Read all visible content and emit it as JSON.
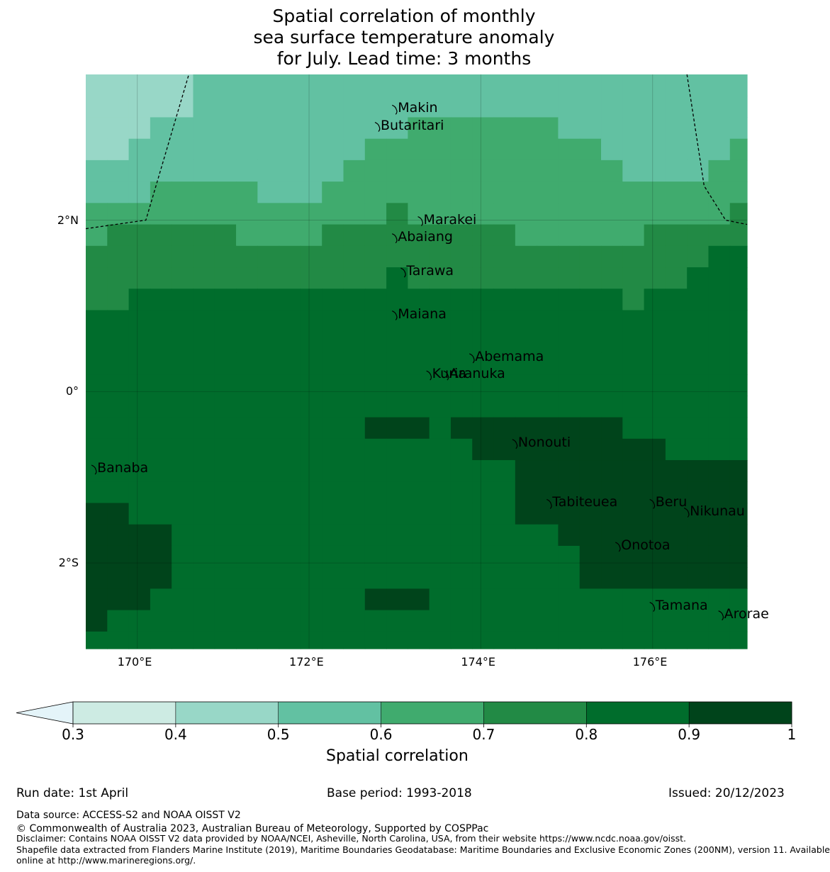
{
  "title": {
    "line1": "Spatial correlation of monthly",
    "line2": "sea surface temperature anomaly",
    "line3": "for July. Lead time: 3 months"
  },
  "map": {
    "lon_range": [
      169.4,
      177.1
    ],
    "lat_range": [
      -3.0,
      3.7
    ],
    "lon_ticks": [
      {
        "value": 170,
        "label": "170°E"
      },
      {
        "value": 172,
        "label": "172°E"
      },
      {
        "value": 174,
        "label": "174°E"
      },
      {
        "value": 176,
        "label": "176°E"
      }
    ],
    "lat_ticks": [
      {
        "value": 2,
        "label": "2°N"
      },
      {
        "value": 0,
        "label": "0°"
      },
      {
        "value": -2,
        "label": "2°S"
      }
    ],
    "grid": true,
    "islands": [
      {
        "name": "Makin",
        "lon": 173.0,
        "lat": 3.3
      },
      {
        "name": "Butaritari",
        "lon": 172.8,
        "lat": 3.1
      },
      {
        "name": "Marakei",
        "lon": 173.3,
        "lat": 2.0
      },
      {
        "name": "Abaiang",
        "lon": 173.0,
        "lat": 1.8
      },
      {
        "name": "Tarawa",
        "lon": 173.1,
        "lat": 1.4
      },
      {
        "name": "Maiana",
        "lon": 173.0,
        "lat": 0.9
      },
      {
        "name": "Abemama",
        "lon": 173.9,
        "lat": 0.4
      },
      {
        "name": "Kuria",
        "lon": 173.4,
        "lat": 0.2
      },
      {
        "name": "Aranuka",
        "lon": 173.6,
        "lat": 0.2
      },
      {
        "name": "Nonouti",
        "lon": 174.4,
        "lat": -0.6
      },
      {
        "name": "Banaba",
        "lon": 169.5,
        "lat": -0.9
      },
      {
        "name": "Tabiteuea",
        "lon": 174.8,
        "lat": -1.3
      },
      {
        "name": "Beru",
        "lon": 176.0,
        "lat": -1.3
      },
      {
        "name": "Nikunau",
        "lon": 176.4,
        "lat": -1.4
      },
      {
        "name": "Onotoa",
        "lon": 175.6,
        "lat": -1.8
      },
      {
        "name": "Tamana",
        "lon": 176.0,
        "lat": -2.5
      },
      {
        "name": "Arorae",
        "lon": 176.8,
        "lat": -2.6
      }
    ],
    "eez_boundary_west": [
      [
        169.4,
        1.9
      ],
      [
        170.1,
        2.0
      ],
      [
        170.6,
        3.7
      ]
    ],
    "eez_boundary_east": [
      [
        176.4,
        3.7
      ],
      [
        176.6,
        2.4
      ],
      [
        176.85,
        2.0
      ],
      [
        177.1,
        1.95
      ]
    ]
  },
  "legend": {
    "label": "Spatial correlation",
    "ticks": [
      "0.3",
      "0.4",
      "0.5",
      "0.6",
      "0.7",
      "0.8",
      "0.9",
      "1"
    ],
    "colors": [
      "#cdebe3",
      "#98d7c7",
      "#62c1a2",
      "#40ab6e",
      "#228a45",
      "#006d2c",
      "#00441b"
    ],
    "extend_color": "#e4f4f9"
  },
  "chart_data": {
    "type": "heatmap",
    "title": "Spatial correlation of monthly sea surface temperature anomaly for July. Lead time: 3 months",
    "xlabel": "",
    "ylabel": "",
    "x_ticks": [
      "170°E",
      "172°E",
      "174°E",
      "176°E"
    ],
    "y_ticks": [
      "2°N",
      "0°",
      "2°S"
    ],
    "lon_edges": [
      169.4,
      169.65,
      169.9,
      170.15,
      170.4,
      170.65,
      170.9,
      171.15,
      171.4,
      171.65,
      171.9,
      172.15,
      172.4,
      172.65,
      172.9,
      173.15,
      173.4,
      173.65,
      173.9,
      174.15,
      174.4,
      174.65,
      174.9,
      175.15,
      175.4,
      175.65,
      175.9,
      176.15,
      176.4,
      176.65,
      176.9,
      177.1
    ],
    "lat_edges": [
      3.7,
      3.45,
      3.2,
      2.95,
      2.7,
      2.45,
      2.2,
      1.95,
      1.7,
      1.45,
      1.2,
      0.95,
      0.7,
      0.45,
      0.2,
      -0.05,
      -0.3,
      -0.55,
      -0.8,
      -1.05,
      -1.3,
      -1.55,
      -1.8,
      -2.05,
      -2.3,
      -2.55,
      -2.8,
      -3.0
    ],
    "levels": [
      0.3,
      0.4,
      0.5,
      0.6,
      0.7,
      0.8,
      0.9,
      1.0
    ],
    "class_grid_note": "class index per cell: 1=0.4-0.5, 2=0.5-0.6, 3=0.6-0.7, 4=0.7-0.8, 5=0.8-0.9, 6=0.9-1.0",
    "class_grid": [
      "1111122222222222222222222222222",
      "1111122222222222222222222222222",
      "1112222222222223333333222222222",
      "1122222222222333333333332222223",
      "2222222222223333333333333222233",
      "2223333322233333333333333333333",
      "3333333333333343333333333333334",
      "3444444333344444444433333344444",
      "4444444444444444444444444444455",
      "4444444444444454444444444444555",
      "4455555555555555555555555455555",
      "5555555555555555555555555555555",
      "5555555555555555555555555555555",
      "5555555555555555555555555555555",
      "5555555555555555555555555555555",
      "5555555555555555555555555555555",
      "5555555555555666566666666555555",
      "5555555555555555556666666665555",
      "5555555555555555555566666666666",
      "5555555555555555555566666666666",
      "6655555555555555555566666666666",
      "6666555555555555555555666666666",
      "6666555555555555555555566666666",
      "6666555555555555555555566666666",
      "6665555555555666555555555555555",
      "6555555555555555555555555555555",
      "5555555555555555555555555555555"
    ]
  },
  "footer": {
    "run_date": "Run date: 1st April",
    "base_period": "Base period: 1993-2018",
    "issued": "Issued: 20/12/2023",
    "data_source": "Data source: ACCESS-S2 and NOAA OISST V2",
    "copyright": "© Commonwealth of Australia 2023, Australian Bureau of Meteorology, Supported by COSPPac",
    "disclaimer": "Disclaimer: Contains NOAA OISST V2 data provided by NOAA/NCEI, Asheville, North Carolina, USA, from their website https://www.ncdc.noaa.gov/oisst.",
    "shapefile_line1": "Shapefile data extracted from Flanders Marine Institute (2019), Maritime Boundaries Geodatabase: Maritime Boundaries and Exclusive Economic Zones (200NM), version 11. Available",
    "shapefile_line2": "online at http://www.marineregions.org/."
  }
}
